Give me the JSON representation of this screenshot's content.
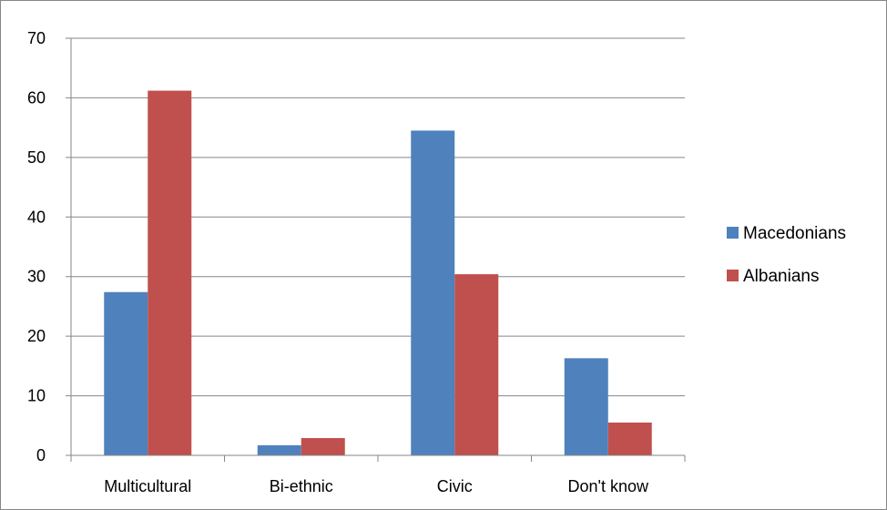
{
  "chart_data": {
    "type": "bar",
    "title": "",
    "xlabel": "",
    "ylabel": "",
    "categories": [
      "Multicultural",
      "Bi-ethnic",
      "Civic",
      "Don't know"
    ],
    "series": [
      {
        "name": "Macedonians",
        "color": "#4F81BD",
        "values": [
          27.4,
          1.7,
          54.5,
          16.3
        ]
      },
      {
        "name": "Albanians",
        "color": "#C0504D",
        "values": [
          61.2,
          2.9,
          30.4,
          5.5
        ]
      }
    ],
    "ylim": [
      0,
      70
    ],
    "yticks": [
      0,
      10,
      20,
      30,
      40,
      50,
      60,
      70
    ],
    "grid": true,
    "legend_position": "right"
  }
}
